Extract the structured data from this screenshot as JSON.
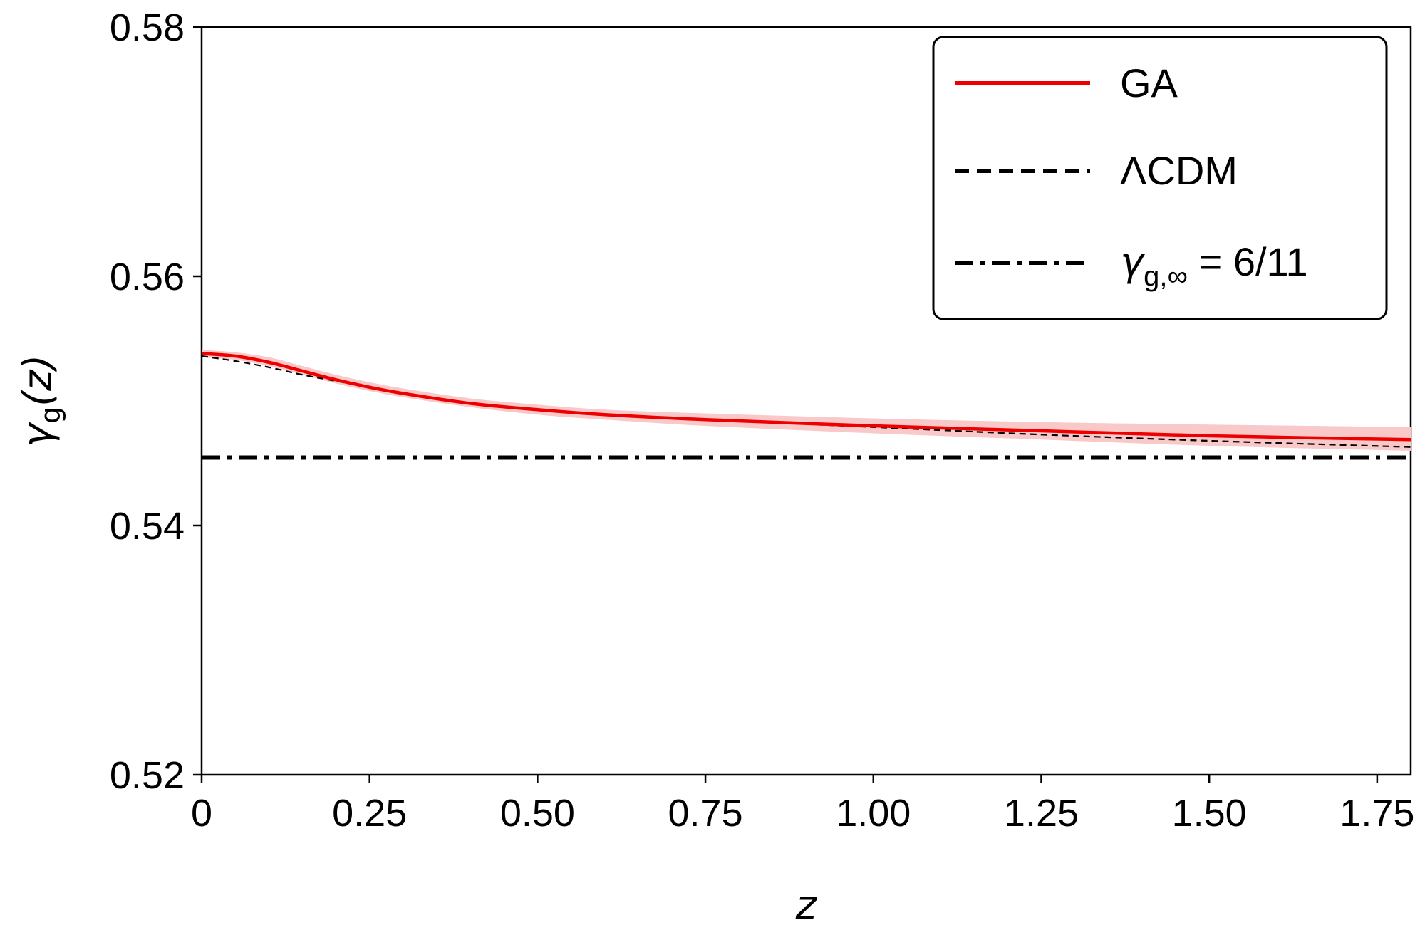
{
  "chart_data": {
    "type": "line",
    "xlabel": "z",
    "ylabel": {
      "base": "γ",
      "sub": "g",
      "rest": "(z)"
    },
    "xlim": [
      0,
      1.8
    ],
    "ylim": [
      0.52,
      0.58
    ],
    "xticks": [
      {
        "value": 0,
        "label": "0"
      },
      {
        "value": 0.25,
        "label": "0.25"
      },
      {
        "value": 0.5,
        "label": "0.50"
      },
      {
        "value": 0.75,
        "label": "0.75"
      },
      {
        "value": 1.0,
        "label": "1.00"
      },
      {
        "value": 1.25,
        "label": "1.25"
      },
      {
        "value": 1.5,
        "label": "1.50"
      },
      {
        "value": 1.75,
        "label": "1.75"
      }
    ],
    "yticks": [
      {
        "value": 0.52,
        "label": "0.52"
      },
      {
        "value": 0.54,
        "label": "0.54"
      },
      {
        "value": 0.56,
        "label": "0.56"
      },
      {
        "value": 0.58,
        "label": "0.58"
      }
    ],
    "grid": false,
    "legend_position": "top-right",
    "legend": [
      {
        "label": "GA",
        "style": "solid",
        "color": "#ee0000"
      },
      {
        "label": "ΛCDM",
        "style": "dashed",
        "color": "#000000"
      },
      {
        "label_base": "γ",
        "label_sub": "g,∞",
        "label_rest": " = 6/11",
        "style": "dashdot",
        "color": "#000000"
      }
    ],
    "series": [
      {
        "name": "GA",
        "color": "#ee0000",
        "band_color": "#f9c8c8",
        "x": [
          0,
          0.05,
          0.1,
          0.15,
          0.2,
          0.25,
          0.3,
          0.4,
          0.5,
          0.6,
          0.75,
          1.0,
          1.25,
          1.5,
          1.8
        ],
        "y": [
          0.5538,
          0.5536,
          0.5531,
          0.5524,
          0.5517,
          0.5511,
          0.5506,
          0.5498,
          0.5493,
          0.5489,
          0.5485,
          0.548,
          0.5476,
          0.5472,
          0.5469
        ],
        "y_low": [
          0.5535,
          0.5533,
          0.5528,
          0.5521,
          0.5514,
          0.5508,
          0.5503,
          0.5495,
          0.5489,
          0.5485,
          0.548,
          0.5474,
          0.5469,
          0.5464,
          0.546
        ],
        "y_high": [
          0.5541,
          0.5539,
          0.5535,
          0.5528,
          0.5521,
          0.5515,
          0.551,
          0.5502,
          0.5497,
          0.5493,
          0.549,
          0.5486,
          0.5483,
          0.5481,
          0.5479
        ]
      },
      {
        "name": "ΛCDM",
        "color": "#000000",
        "x": [
          0,
          0.05,
          0.1,
          0.15,
          0.2,
          0.25,
          0.3,
          0.4,
          0.5,
          0.6,
          0.75,
          1.0,
          1.25,
          1.5,
          1.8
        ],
        "y": [
          0.5536,
          0.5532,
          0.5527,
          0.5521,
          0.5516,
          0.5511,
          0.5506,
          0.5498,
          0.5493,
          0.5489,
          0.5485,
          0.5479,
          0.5473,
          0.5468,
          0.5463
        ]
      },
      {
        "name": "γg,∞ = 6/11",
        "color": "#000000",
        "x": [
          0,
          1.8
        ],
        "y": [
          0.545455,
          0.545455
        ]
      }
    ]
  }
}
